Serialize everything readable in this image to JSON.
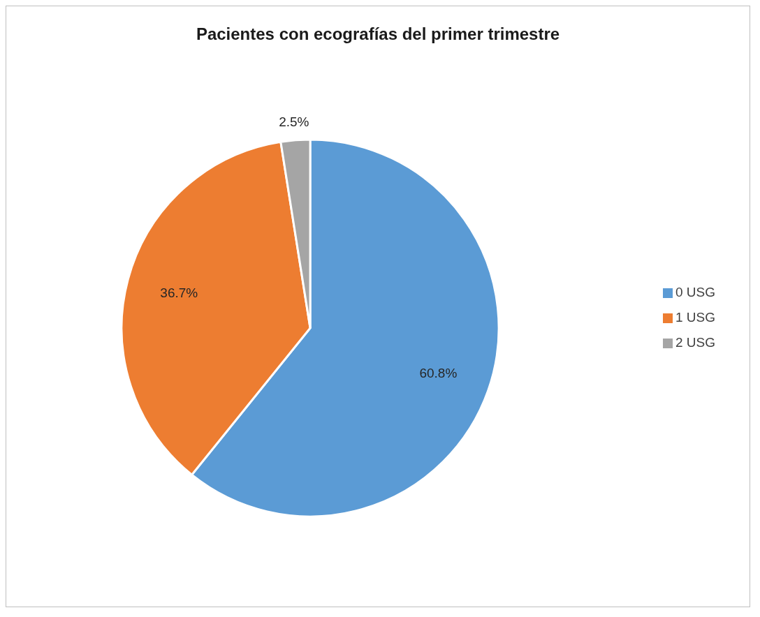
{
  "chart_data": {
    "type": "pie",
    "title": "Pacientes con ecografías del primer trimestre",
    "categories": [
      "0 USG",
      "1 USG",
      "2 USG"
    ],
    "values": [
      60.8,
      36.7,
      2.5
    ],
    "colors": [
      "#5b9bd5",
      "#ed7d31",
      "#a5a5a5"
    ],
    "value_labels": [
      "60.8%",
      "36.7%",
      "2.5%"
    ],
    "legend": "right"
  }
}
